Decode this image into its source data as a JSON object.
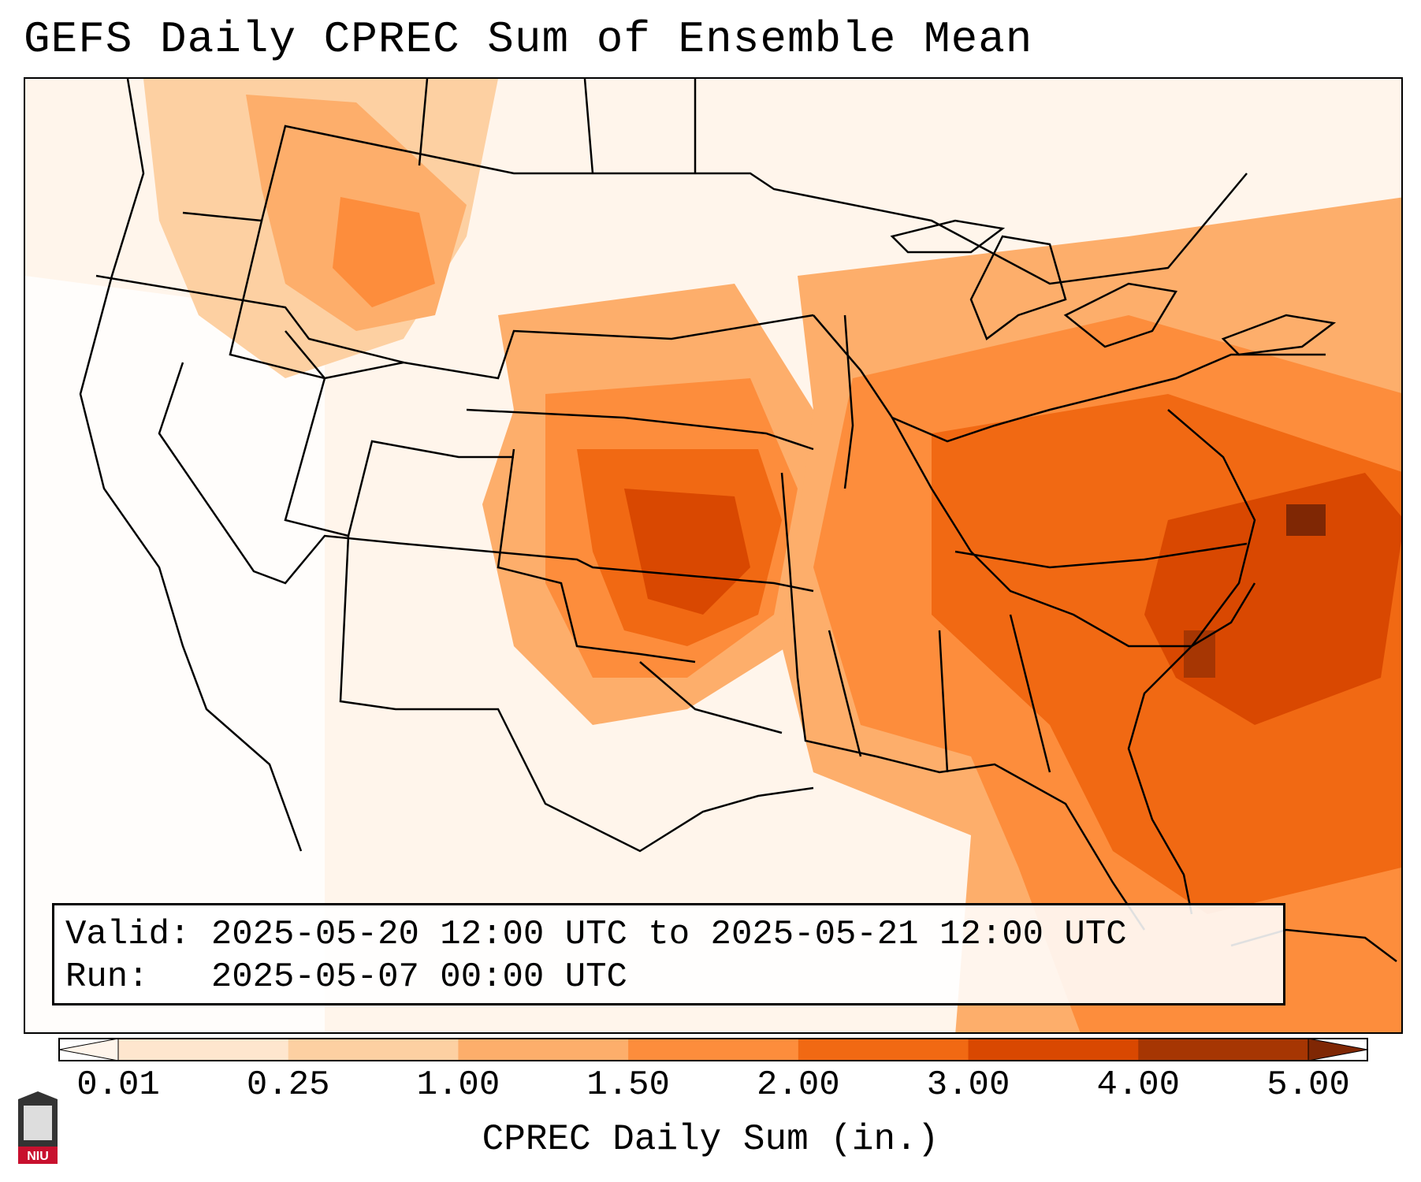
{
  "title": "GEFS Daily CPREC Sum of Ensemble Mean",
  "info": {
    "valid_label": "Valid:",
    "valid_value": "2025-05-20 12:00 UTC to 2025-05-21 12:00 UTC",
    "run_label": "Run:",
    "run_value": "2025-05-07 00:00 UTC"
  },
  "colorbar": {
    "label": "CPREC Daily Sum (in.)",
    "ticks": [
      "0.01",
      "0.25",
      "1.00",
      "1.50",
      "2.00",
      "3.00",
      "4.00",
      "5.00"
    ],
    "colors": [
      "#fff5eb",
      "#fee6ce",
      "#fdd0a2",
      "#fdae6b",
      "#fd8d3c",
      "#f16913",
      "#d94801",
      "#a63603",
      "#7f2704"
    ]
  },
  "logo": {
    "text": "NIU"
  }
}
